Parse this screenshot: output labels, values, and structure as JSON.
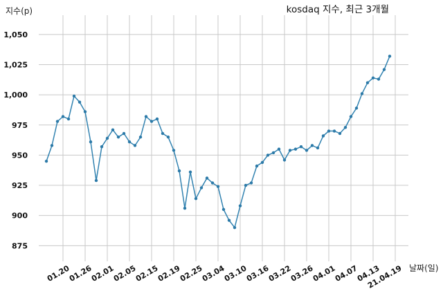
{
  "chart_data": {
    "type": "line",
    "title": "kosdaq 지수, 최근 3개월",
    "ylabel": "지수(p)",
    "xlabel": "날짜(일)",
    "ylim": [
      862,
      1066
    ],
    "yticks": [
      "875",
      "900",
      "925",
      "950",
      "975",
      "1,000",
      "1,025",
      "1,050"
    ],
    "ytick_values": [
      875,
      900,
      925,
      950,
      975,
      1000,
      1025,
      1050
    ],
    "xticks": [
      "01.20",
      "01.26",
      "02.01",
      "02.05",
      "02.15",
      "02.19",
      "02.25",
      "03.04",
      "03.10",
      "03.16",
      "03.22",
      "03.26",
      "04.01",
      "04.07",
      "04.13",
      "21.04.19"
    ],
    "xtick_index": [
      3,
      7,
      11,
      15,
      19,
      23,
      27,
      31,
      35,
      39,
      43,
      47,
      51,
      55,
      59,
      63
    ],
    "grid": true,
    "series": [
      {
        "color": "#3182b0",
        "values": [
          945,
          958,
          978,
          982,
          980,
          999,
          994,
          986,
          961,
          929,
          957,
          964,
          971,
          965,
          968,
          961,
          958,
          965,
          982,
          978,
          980,
          968,
          965,
          954,
          937,
          906,
          936,
          914,
          923,
          931,
          927,
          924,
          905,
          896,
          890,
          908,
          925,
          927,
          941,
          944,
          950,
          952,
          955,
          946,
          954,
          955,
          957,
          954,
          958,
          956,
          966,
          970,
          970,
          968,
          973,
          982,
          989,
          1001,
          1010,
          1014,
          1013,
          1021,
          1032
        ]
      }
    ]
  }
}
